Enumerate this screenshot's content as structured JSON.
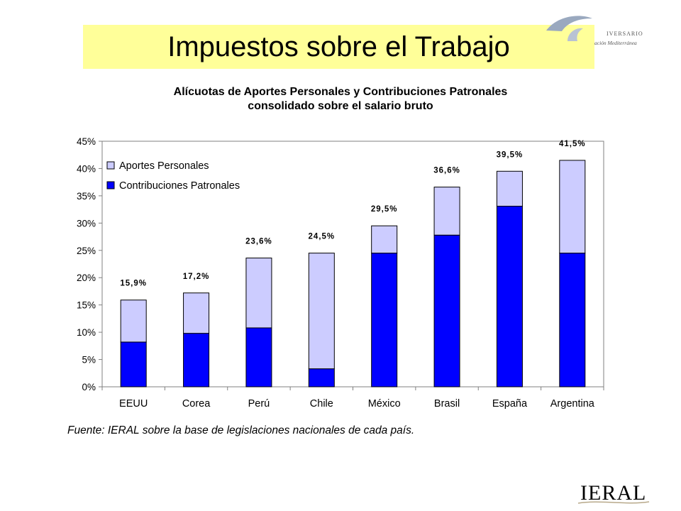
{
  "slide": {
    "title": "Impuestos sobre el Trabajo",
    "source": "Fuente: IERAL sobre la base de legislaciones nacionales de cada país.",
    "logo_top_right": {
      "line1": "IVERSARIO",
      "line2": "ación Mediterránea"
    },
    "logo_bottom_right": "IERAL"
  },
  "chart_data": {
    "type": "bar",
    "stacked": true,
    "title": "Alícuotas de Aportes Personales y Contribuciones Patronales",
    "subtitle": "consolidado sobre el salario bruto",
    "categories": [
      "EEUU",
      "Corea",
      "Perú",
      "Chile",
      "México",
      "Brasil",
      "España",
      "Argentina"
    ],
    "series": [
      {
        "name": "Contribuciones Patronales",
        "color": "#0000ff",
        "values": [
          8.2,
          9.8,
          10.8,
          3.3,
          24.5,
          27.8,
          33.1,
          24.5
        ]
      },
      {
        "name": "Aportes Personales",
        "color": "#ccccff",
        "values": [
          7.7,
          7.4,
          12.8,
          21.2,
          5.0,
          8.8,
          6.4,
          17.0
        ]
      }
    ],
    "totals": [
      15.9,
      17.2,
      23.6,
      24.5,
      29.5,
      36.6,
      39.5,
      41.5
    ],
    "total_labels": [
      "15,9%",
      "17,2%",
      "23,6%",
      "24,5%",
      "29,5%",
      "36,6%",
      "39,5%",
      "41,5%"
    ],
    "ylim": [
      0,
      45
    ],
    "yticks": [
      0,
      5,
      10,
      15,
      20,
      25,
      30,
      35,
      40,
      45
    ],
    "ytick_labels": [
      "0%",
      "5%",
      "10%",
      "15%",
      "20%",
      "25%",
      "30%",
      "35%",
      "40%",
      "45%"
    ],
    "legend_position": "top-left",
    "legend_order": [
      "Aportes Personales",
      "Contribuciones Patronales"
    ],
    "grid": false
  }
}
